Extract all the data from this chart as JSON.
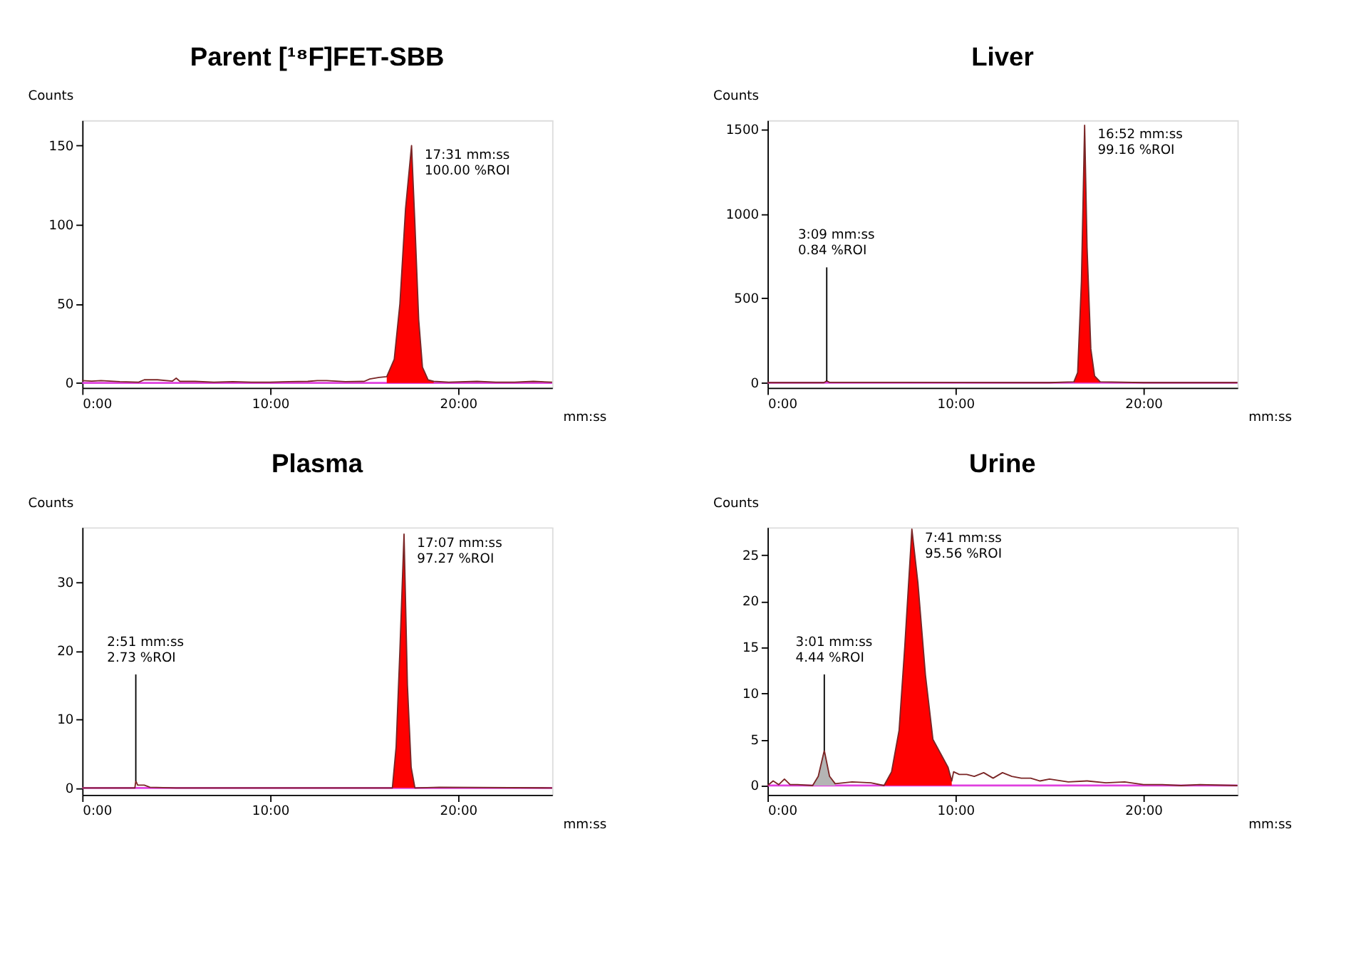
{
  "chart_data": [
    {
      "type": "line",
      "title": "Parent [¹⁸F]FET-SBB",
      "xlabel": "mm:ss",
      "ylabel": "Counts",
      "xlim": [
        0,
        25
      ],
      "ylim": [
        -3,
        166
      ],
      "xticks": [
        {
          "value": 0,
          "label": "0:00"
        },
        {
          "value": 10,
          "label": "10:00"
        },
        {
          "value": 20,
          "label": "20:00"
        }
      ],
      "yticks": [
        0,
        50,
        100,
        150
      ],
      "grid": false,
      "series": [
        {
          "type": "area",
          "color": "#ff0000",
          "x": [
            16.2,
            16.6,
            16.9,
            17.2,
            17.52,
            17.7,
            17.9,
            18.1,
            18.4,
            18.7
          ],
          "values": [
            4,
            15,
            50,
            110,
            150,
            100,
            40,
            10,
            2,
            1
          ]
        },
        {
          "color": "#7a2525",
          "x": [
            0,
            0.5,
            1,
            2,
            3,
            3.3,
            4,
            4.8,
            5,
            5.2,
            6,
            7,
            8,
            9,
            10,
            11,
            12,
            12.5,
            13,
            14,
            15,
            15.3,
            15.8,
            16.2,
            16.6,
            16.9,
            17.2,
            17.52,
            17.7,
            17.9,
            18.1,
            18.4,
            18.7,
            19.5,
            21,
            22,
            23,
            24,
            25
          ],
          "values": [
            1.5,
            1.2,
            1.5,
            0.8,
            0.5,
            2,
            2,
            1.2,
            3,
            1,
            1,
            0.5,
            0.8,
            0.5,
            0.5,
            0.8,
            1,
            1.5,
            1.5,
            0.8,
            1,
            2.5,
            3.5,
            4,
            15,
            50,
            110,
            150,
            100,
            40,
            10,
            2,
            1,
            0.5,
            1,
            0.5,
            0.5,
            1,
            0.5
          ]
        }
      ],
      "ref_lines": [
        {
          "axis": "y",
          "value": 0,
          "color": "#e040e0"
        }
      ],
      "annotations": [
        {
          "text": "17:31 mm:ss\n100.00 %ROI",
          "x": 17.52,
          "y": 150
        }
      ]
    },
    {
      "type": "line",
      "title": "Liver",
      "xlabel": "mm:ss",
      "ylabel": "Counts",
      "xlim": [
        0,
        25
      ],
      "ylim": [
        -30,
        1555
      ],
      "xticks": [
        {
          "value": 0,
          "label": "0:00"
        },
        {
          "value": 10,
          "label": "10:00"
        },
        {
          "value": 20,
          "label": "20:00"
        }
      ],
      "yticks": [
        0,
        500,
        1000,
        1500
      ],
      "grid": false,
      "series": [
        {
          "type": "area",
          "color": "#ff0000",
          "x": [
            16.3,
            16.5,
            16.7,
            16.87,
            17.0,
            17.2,
            17.4,
            17.7
          ],
          "values": [
            5,
            60,
            600,
            1525,
            800,
            200,
            40,
            5
          ]
        },
        {
          "color": "#7a2525",
          "x": [
            0,
            3.0,
            3.15,
            3.3,
            5,
            10,
            15,
            16.3,
            16.5,
            16.7,
            16.87,
            17.0,
            17.2,
            17.4,
            17.7,
            20,
            25
          ],
          "values": [
            0,
            0,
            10,
            2,
            2,
            1,
            0,
            5,
            60,
            600,
            1525,
            800,
            200,
            40,
            5,
            0,
            0
          ]
        }
      ],
      "ref_lines": [
        {
          "axis": "y",
          "value": 0,
          "color": "#e040e0"
        }
      ],
      "annotations": [
        {
          "text": "3:09 mm:ss\n0.84 %ROI",
          "x": 3.15,
          "y": 10
        },
        {
          "text": "16:52 mm:ss\n99.16 %ROI",
          "x": 16.87,
          "y": 1525
        }
      ]
    },
    {
      "type": "line",
      "title": "Plasma",
      "xlabel": "mm:ss",
      "ylabel": "Counts",
      "xlim": [
        0,
        25
      ],
      "ylim": [
        -1,
        38
      ],
      "xticks": [
        {
          "value": 0,
          "label": "0:00"
        },
        {
          "value": 10,
          "label": "10:00"
        },
        {
          "value": 20,
          "label": "20:00"
        }
      ],
      "yticks": [
        0,
        10,
        20,
        30
      ],
      "grid": false,
      "series": [
        {
          "type": "area",
          "color": "#ff0000",
          "x": [
            16.5,
            16.7,
            16.9,
            17.12,
            17.3,
            17.5,
            17.7
          ],
          "values": [
            0,
            6,
            20,
            37,
            15,
            3,
            0
          ]
        },
        {
          "color": "#7a2525",
          "x": [
            0,
            2.8,
            2.85,
            2.95,
            3.3,
            3.6,
            5,
            10,
            16.5,
            16.7,
            16.9,
            17.12,
            17.3,
            17.5,
            17.7,
            19,
            25
          ],
          "values": [
            0,
            0,
            1,
            0.4,
            0.4,
            0.1,
            0,
            0,
            0,
            6,
            20,
            37,
            15,
            3,
            0,
            0.1,
            0
          ]
        }
      ],
      "ref_lines": [
        {
          "axis": "y",
          "value": 0,
          "color": "#e040e0"
        }
      ],
      "annotations": [
        {
          "text": "2:51 mm:ss\n2.73 %ROI",
          "x": 2.85,
          "y": 1
        },
        {
          "text": "17:07 mm:ss\n97.27 %ROI",
          "x": 17.12,
          "y": 37
        }
      ]
    },
    {
      "type": "line",
      "title": "Urine",
      "xlabel": "mm:ss",
      "ylabel": "Counts",
      "xlim": [
        0,
        25
      ],
      "ylim": [
        -1,
        28
      ],
      "xticks": [
        {
          "value": 0,
          "label": "0:00"
        },
        {
          "value": 10,
          "label": "10:00"
        },
        {
          "value": 20,
          "label": "20:00"
        }
      ],
      "yticks": [
        0,
        5,
        10,
        15,
        20,
        25
      ],
      "grid": false,
      "series": [
        {
          "type": "area",
          "color": "#b4b4b4",
          "x": [
            2.4,
            2.7,
            3.02,
            3.3,
            3.6
          ],
          "values": [
            0,
            1,
            3.8,
            1,
            0.2
          ]
        },
        {
          "type": "area",
          "color": "#ff0000",
          "x": [
            6.2,
            6.6,
            7.0,
            7.3,
            7.68,
            8.0,
            8.4,
            8.8,
            9.2,
            9.6,
            9.8
          ],
          "values": [
            0,
            1.5,
            6,
            15,
            27.8,
            22,
            12,
            5,
            3.5,
            2,
            0.5
          ]
        },
        {
          "color": "#7a2525",
          "x": [
            0,
            0.3,
            0.6,
            0.9,
            1.2,
            1.6,
            2.4,
            2.7,
            3.02,
            3.3,
            3.6,
            4.5,
            5.5,
            6.2,
            6.6,
            7.0,
            7.3,
            7.68,
            8.0,
            8.4,
            8.8,
            9.2,
            9.6,
            9.8,
            9.9,
            10.2,
            10.6,
            11,
            11.5,
            12,
            12.5,
            13,
            13.5,
            14,
            14.5,
            15,
            16,
            17,
            18,
            19,
            20,
            21,
            22,
            23,
            25
          ],
          "values": [
            0,
            0.5,
            0.1,
            0.7,
            0.1,
            0.1,
            0,
            1,
            3.8,
            1,
            0.2,
            0.4,
            0.3,
            0,
            1.5,
            6,
            15,
            27.8,
            22,
            12,
            5,
            3.5,
            2,
            0.5,
            1.5,
            1.2,
            1.2,
            1,
            1.4,
            0.8,
            1.4,
            1,
            0.8,
            0.8,
            0.5,
            0.7,
            0.4,
            0.5,
            0.3,
            0.4,
            0.1,
            0.1,
            0,
            0.1,
            0
          ]
        }
      ],
      "ref_lines": [
        {
          "axis": "y",
          "value": 0,
          "color": "#e040e0"
        }
      ],
      "annotations": [
        {
          "text": "3:01 mm:ss\n4.44 %ROI",
          "x": 3.02,
          "y": 3.8
        },
        {
          "text": "7:41 mm:ss\n95.56 %ROI",
          "x": 7.68,
          "y": 27.8
        }
      ]
    }
  ]
}
